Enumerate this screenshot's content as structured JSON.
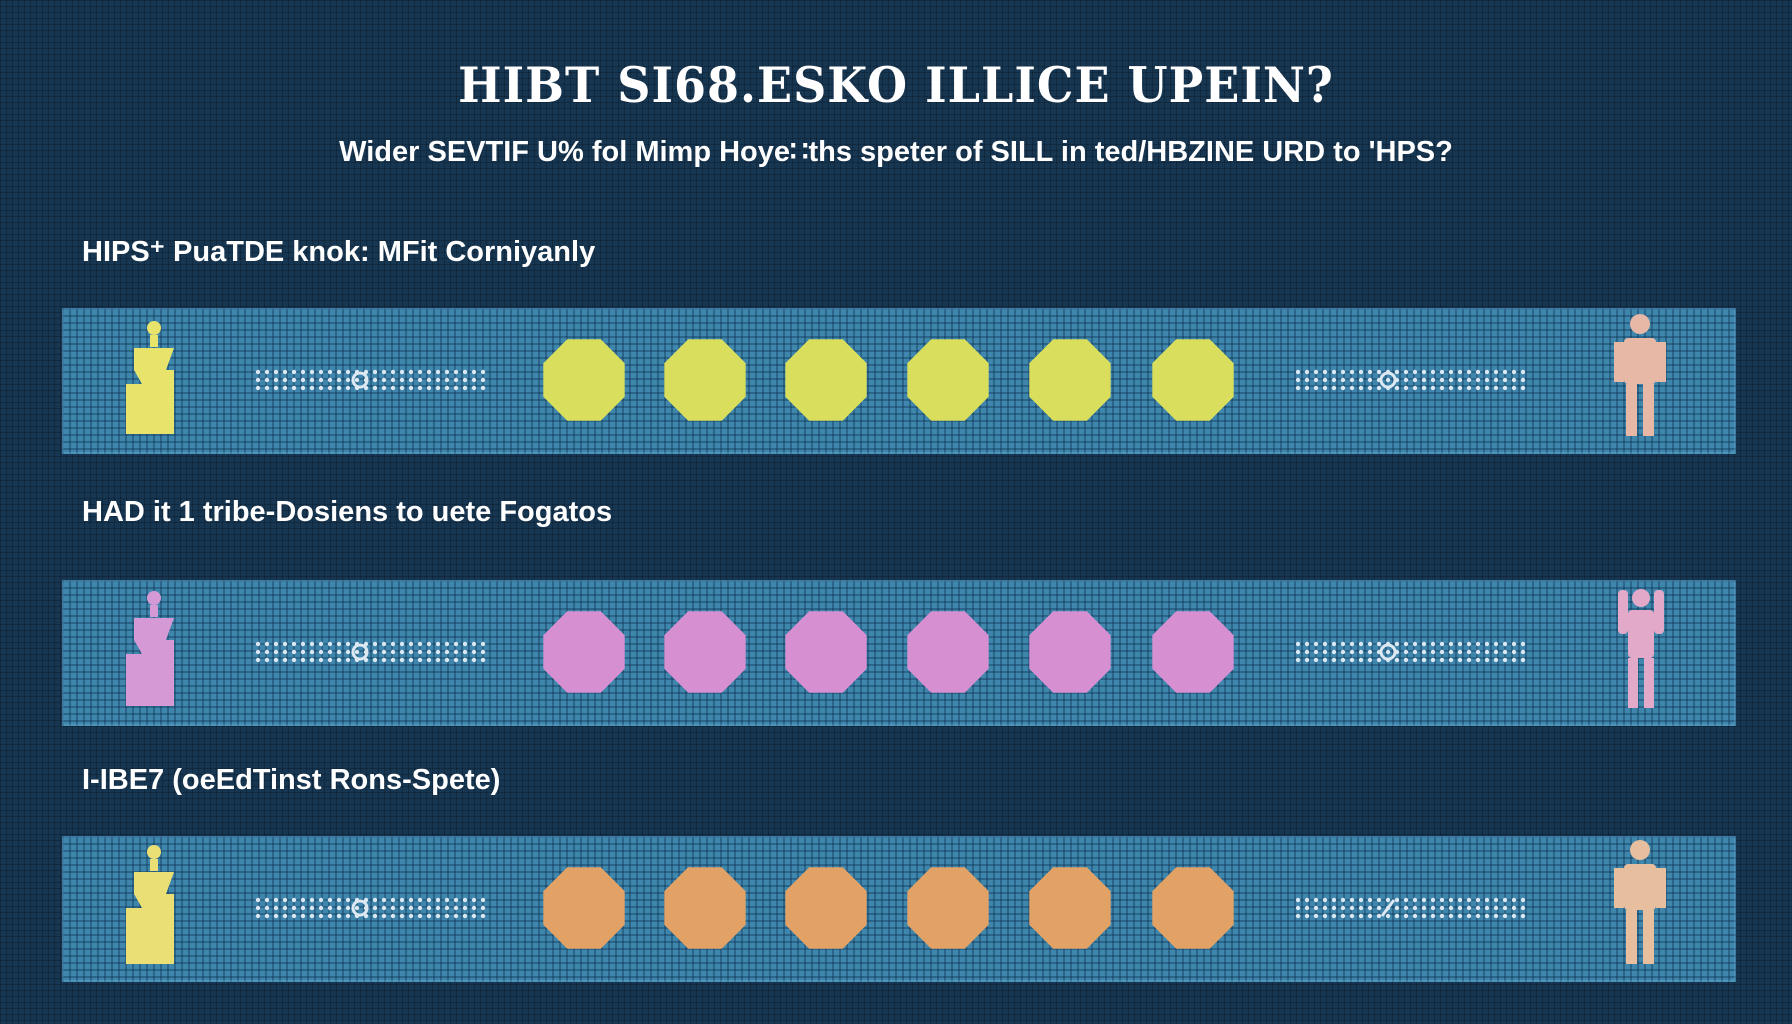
{
  "title": "HIBT SI68.ESKO ILLICE UPEIN?",
  "subtitle": "Wider SEVTIF U% fol Mimp Hoye∷ths speter of SILL in ted/HBZINE URD to 'HPS?",
  "rows": [
    {
      "label": "HIPS⁺ PuaTDE knok: MFit Corniyanly",
      "circle_count": 6,
      "colors": {
        "left_figure": "#e7e36b",
        "circle": "#d9de5c",
        "right_figure": "#e7b8a6"
      },
      "icons": {
        "left": "person-bottle-icon",
        "right": "standing-person-icon"
      }
    },
    {
      "label": "HAD it 1 tribe-Dosiens to uete Fogatos",
      "circle_count": 6,
      "colors": {
        "left_figure": "#d59ad6",
        "circle": "#d690d2",
        "right_figure": "#e3a9c9"
      },
      "icons": {
        "left": "person-bottle-icon",
        "right": "arms-up-person-icon"
      }
    },
    {
      "label": "I-IBE7 (oeEdTinst Rons-Spete)",
      "circle_count": 6,
      "colors": {
        "left_figure": "#e9df74",
        "circle": "#e2a165",
        "right_figure": "#e7bf9e"
      },
      "icons": {
        "left": "person-bottle-icon",
        "right": "standing-person-icon"
      }
    }
  ]
}
